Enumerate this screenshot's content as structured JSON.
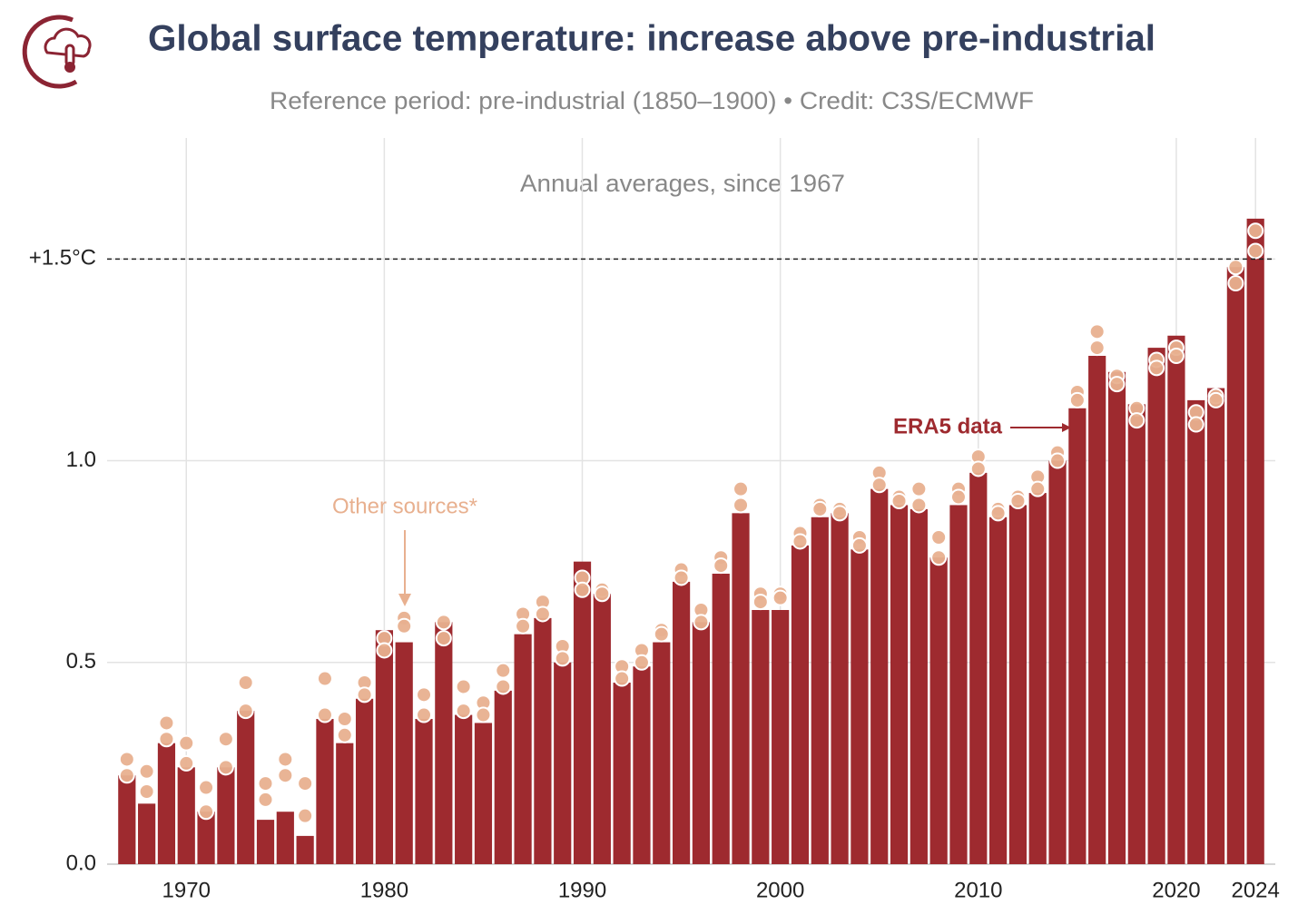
{
  "chart_data": {
    "type": "bar",
    "title": "Global surface temperature: increase above pre-industrial",
    "subtitle": "Reference period: pre-industrial (1850–1900) • Credit: C3S/ECMWF",
    "note": "Annual averages, since 1967",
    "x": [
      1967,
      1968,
      1969,
      1970,
      1971,
      1972,
      1973,
      1974,
      1975,
      1976,
      1977,
      1978,
      1979,
      1980,
      1981,
      1982,
      1983,
      1984,
      1985,
      1986,
      1987,
      1988,
      1989,
      1990,
      1991,
      1992,
      1993,
      1994,
      1995,
      1996,
      1997,
      1998,
      1999,
      2000,
      2001,
      2002,
      2003,
      2004,
      2005,
      2006,
      2007,
      2008,
      2009,
      2010,
      2011,
      2012,
      2013,
      2014,
      2015,
      2016,
      2017,
      2018,
      2019,
      2020,
      2021,
      2022,
      2023,
      2024
    ],
    "series": [
      {
        "name": "ERA5 data",
        "color": "#9e2a2f",
        "values": [
          0.22,
          0.15,
          0.3,
          0.24,
          0.13,
          0.24,
          0.38,
          0.11,
          0.13,
          0.07,
          0.36,
          0.3,
          0.41,
          0.58,
          0.55,
          0.36,
          0.6,
          0.37,
          0.35,
          0.43,
          0.57,
          0.61,
          0.5,
          0.75,
          0.67,
          0.45,
          0.49,
          0.55,
          0.7,
          0.6,
          0.72,
          0.87,
          0.63,
          0.63,
          0.79,
          0.86,
          0.87,
          0.78,
          0.93,
          0.89,
          0.88,
          0.76,
          0.89,
          0.97,
          0.86,
          0.89,
          0.92,
          1.0,
          1.13,
          1.26,
          1.22,
          1.14,
          1.28,
          1.31,
          1.15,
          1.18,
          1.48,
          1.6
        ]
      }
    ],
    "other_sources": {
      "name": "Other sources*",
      "type": "scatter",
      "color": "#e8b08f",
      "values": [
        [
          0.26,
          0.22
        ],
        [
          0.23,
          0.18
        ],
        [
          0.35,
          0.31
        ],
        [
          0.3,
          0.25
        ],
        [
          0.19,
          0.13
        ],
        [
          0.31,
          0.24
        ],
        [
          0.45,
          0.38
        ],
        [
          0.2,
          0.16
        ],
        [
          0.26,
          0.22
        ],
        [
          0.2,
          0.12
        ],
        [
          0.46,
          0.37
        ],
        [
          0.36,
          0.32
        ],
        [
          0.45,
          0.42
        ],
        [
          0.56,
          0.53
        ],
        [
          0.61,
          0.59
        ],
        [
          0.42,
          0.37
        ],
        [
          0.6,
          0.56
        ],
        [
          0.44,
          0.38
        ],
        [
          0.4,
          0.37
        ],
        [
          0.48,
          0.44
        ],
        [
          0.62,
          0.59
        ],
        [
          0.65,
          0.62
        ],
        [
          0.54,
          0.51
        ],
        [
          0.71,
          0.68
        ],
        [
          0.68,
          0.67
        ],
        [
          0.49,
          0.46
        ],
        [
          0.53,
          0.5
        ],
        [
          0.58,
          0.57
        ],
        [
          0.73,
          0.71
        ],
        [
          0.63,
          0.6
        ],
        [
          0.76,
          0.74
        ],
        [
          0.93,
          0.89
        ],
        [
          0.67,
          0.65
        ],
        [
          0.67,
          0.66
        ],
        [
          0.82,
          0.8
        ],
        [
          0.89,
          0.88
        ],
        [
          0.88,
          0.87
        ],
        [
          0.81,
          0.79
        ],
        [
          0.97,
          0.94
        ],
        [
          0.91,
          0.9
        ],
        [
          0.93,
          0.89
        ],
        [
          0.81,
          0.76
        ],
        [
          0.93,
          0.91
        ],
        [
          1.01,
          0.98
        ],
        [
          0.88,
          0.87
        ],
        [
          0.91,
          0.9
        ],
        [
          0.96,
          0.93
        ],
        [
          1.02,
          1.0
        ],
        [
          1.17,
          1.15
        ],
        [
          1.32,
          1.28
        ],
        [
          1.21,
          1.19
        ],
        [
          1.13,
          1.1
        ],
        [
          1.25,
          1.23
        ],
        [
          1.28,
          1.26
        ],
        [
          1.12,
          1.09
        ],
        [
          1.16,
          1.15
        ],
        [
          1.48,
          1.44
        ],
        [
          1.57,
          1.52
        ]
      ]
    },
    "xlim": [
      1966,
      2025
    ],
    "xticks": [
      1970,
      1980,
      1990,
      2000,
      2010,
      2020,
      2024
    ],
    "ylim": [
      0,
      1.8
    ],
    "yticks": [
      {
        "value": 0,
        "label": "0.0"
      },
      0.5,
      {
        "value": 1,
        "label": "1.0"
      },
      {
        "value": 1.5,
        "label": "+1.5°C"
      }
    ],
    "threshold_line": {
      "value": 1.5,
      "style": "dashed",
      "color": "#222222"
    },
    "grid": true
  }
}
